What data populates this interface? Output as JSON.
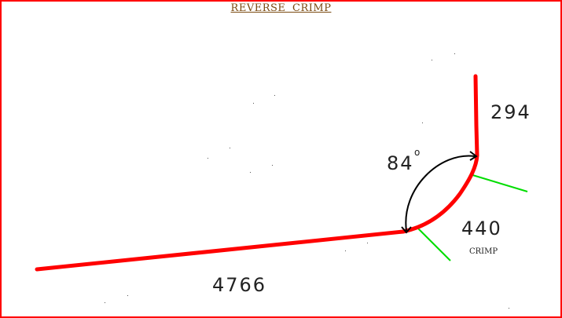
{
  "title": "REVERSE  CRIMP",
  "labels": {
    "segment_top": "294",
    "angle": "84",
    "angle_unit": "o",
    "segment_bend": "440",
    "bend_note": "CRIMP",
    "segment_long": "4766"
  },
  "colors": {
    "frame": "#ff0000",
    "part_line": "#ff0000",
    "angle_arc": "#000000",
    "tangent_marks": "#00dd00",
    "title": "#7a4a10"
  }
}
